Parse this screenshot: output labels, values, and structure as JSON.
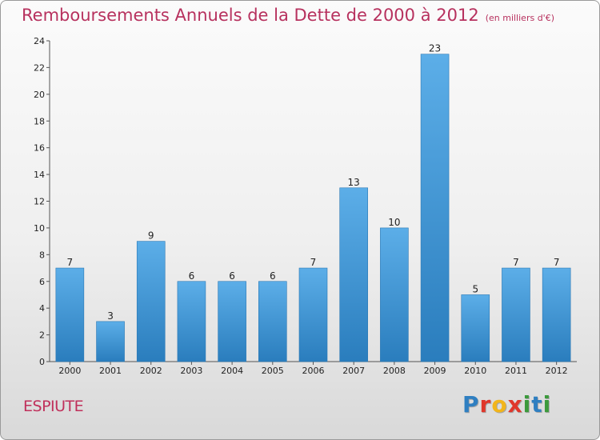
{
  "title": "Remboursements Annuels de la Dette de 2000 à 2012",
  "title_unit": "(en milliers d'€)",
  "commune": "ESPIUTE",
  "logo": {
    "text": "Proxiti",
    "letters": [
      {
        "char": "P",
        "color": "#2f7fc1"
      },
      {
        "char": "r",
        "color": "#e0372b"
      },
      {
        "char": "o",
        "color": "#f2b51b"
      },
      {
        "char": "x",
        "color": "#e0372b"
      },
      {
        "char": "i",
        "color": "#3c9a3c"
      },
      {
        "char": "t",
        "color": "#2f7fc1"
      },
      {
        "char": "i",
        "color": "#3c9a3c"
      }
    ]
  },
  "colors": {
    "bar_top": "#5caee8",
    "bar_bottom": "#2a7dbd",
    "title": "#b7315e"
  },
  "chart_data": {
    "type": "bar",
    "title": "Remboursements Annuels de la Dette de 2000 à 2012",
    "categories": [
      "2000",
      "2001",
      "2002",
      "2003",
      "2004",
      "2005",
      "2006",
      "2007",
      "2008",
      "2009",
      "2010",
      "2011",
      "2012"
    ],
    "values": [
      7,
      3,
      9,
      6,
      6,
      6,
      7,
      13,
      10,
      23,
      5,
      7,
      7
    ],
    "ylim": [
      0,
      24
    ],
    "yticks": [
      0,
      2,
      4,
      6,
      8,
      10,
      12,
      14,
      16,
      18,
      20,
      22,
      24
    ],
    "grid": false,
    "data_labels": true
  }
}
